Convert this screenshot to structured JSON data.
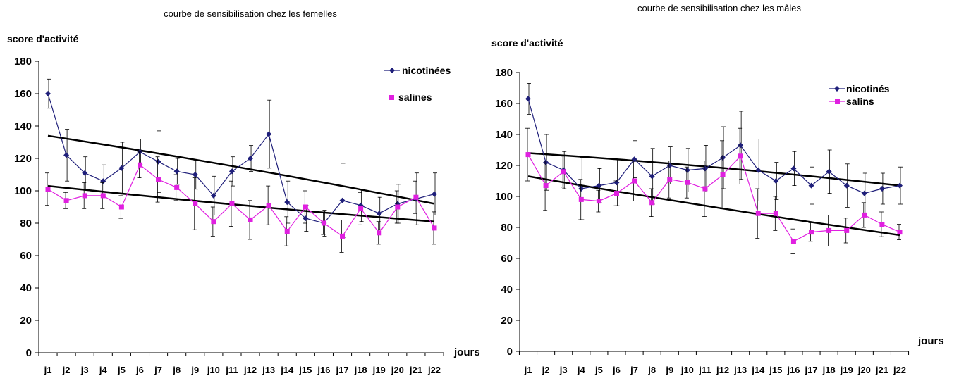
{
  "chart_data": [
    {
      "type": "line",
      "title": "courbe de sensibilisation chez les femelles",
      "ylabel": "score d'activité",
      "xlabel": "jours",
      "ylim": [
        0,
        180
      ],
      "yticks": [
        0,
        20,
        40,
        60,
        80,
        100,
        120,
        140,
        160,
        180
      ],
      "grid": false,
      "legend_position": "top-right",
      "categories": [
        "j1",
        "j2",
        "j3",
        "j4",
        "j5",
        "j6",
        "j7",
        "j8",
        "j9",
        "j10",
        "j11",
        "j12",
        "j13",
        "j14",
        "j15",
        "j16",
        "j17",
        "j18",
        "j19",
        "j20",
        "j21",
        "j22"
      ],
      "series": [
        {
          "name": "nicotinées",
          "color": "#1f1f7a",
          "marker": "diamond",
          "values": [
            160,
            122,
            111,
            106,
            114,
            124,
            118,
            112,
            110,
            97,
            112,
            120,
            135,
            93,
            83,
            80,
            94,
            91,
            86,
            92,
            95,
            98
          ],
          "error": [
            9,
            16,
            10,
            10,
            16,
            8,
            19,
            8,
            9,
            12,
            9,
            8,
            21,
            13,
            8,
            8,
            23,
            10,
            10,
            12,
            16,
            13
          ]
        },
        {
          "name": "salines",
          "color": "#e020e0",
          "marker": "square",
          "values": [
            101,
            94,
            97,
            97,
            90,
            116,
            107,
            102,
            92,
            81,
            92,
            82,
            91,
            75,
            90,
            80,
            72,
            89,
            74,
            90,
            96,
            77
          ],
          "error": [
            10,
            5,
            8,
            8,
            7,
            8,
            14,
            8,
            16,
            9,
            14,
            12,
            12,
            9,
            10,
            7,
            10,
            10,
            7,
            10,
            10,
            10
          ]
        }
      ],
      "trendlines": [
        {
          "series": "nicotinées",
          "start": 134,
          "end": 92
        },
        {
          "series": "salines",
          "start": 103,
          "end": 81
        }
      ]
    },
    {
      "type": "line",
      "title": "courbe de sensibilisation chez les mâles",
      "ylabel": "score d'activité",
      "xlabel": "jours",
      "ylim": [
        0,
        180
      ],
      "yticks": [
        0,
        20,
        40,
        60,
        80,
        100,
        120,
        140,
        160,
        180
      ],
      "grid": false,
      "legend_position": "top-right",
      "categories": [
        "j1",
        "j2",
        "j3",
        "j4",
        "j5",
        "j6",
        "j7",
        "j8",
        "j9",
        "j10",
        "j11",
        "j12",
        "j13",
        "j14",
        "j15",
        "j16",
        "j17",
        "j18",
        "j19",
        "j20",
        "j21",
        "j22"
      ],
      "series": [
        {
          "name": "nicotinés",
          "color": "#1f1f7a",
          "marker": "diamond",
          "values": [
            163,
            122,
            117,
            105,
            107,
            109,
            124,
            113,
            120,
            117,
            118,
            125,
            133,
            117,
            110,
            118,
            107,
            116,
            107,
            102,
            105,
            107
          ],
          "error": [
            10,
            18,
            12,
            20,
            11,
            15,
            12,
            18,
            12,
            14,
            15,
            20,
            22,
            20,
            12,
            11,
            12,
            14,
            14,
            13,
            10,
            12
          ]
        },
        {
          "name": "salins",
          "color": "#e020e0",
          "marker": "square",
          "values": [
            127,
            107,
            116,
            98,
            97,
            102,
            110,
            96,
            111,
            109,
            105,
            114,
            126,
            89,
            89,
            71,
            77,
            78,
            78,
            88,
            82,
            77
          ],
          "error": [
            17,
            16,
            10,
            13,
            7,
            8,
            13,
            9,
            12,
            10,
            18,
            22,
            18,
            16,
            11,
            8,
            6,
            10,
            8,
            8,
            8,
            5
          ]
        }
      ],
      "trendlines": [
        {
          "series": "nicotinés",
          "start": 128,
          "end": 107
        },
        {
          "series": "salins",
          "start": 113,
          "end": 75
        }
      ]
    }
  ]
}
